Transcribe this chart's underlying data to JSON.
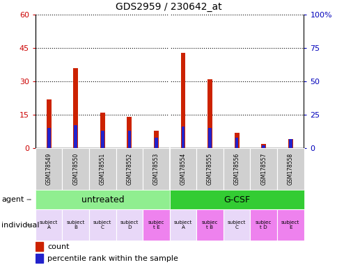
{
  "title": "GDS2959 / 230642_at",
  "samples": [
    "GSM178549",
    "GSM178550",
    "GSM178551",
    "GSM178552",
    "GSM178553",
    "GSM178554",
    "GSM178555",
    "GSM178556",
    "GSM178557",
    "GSM178558"
  ],
  "count": [
    22,
    36,
    16,
    14,
    8,
    43,
    31,
    7,
    2,
    4
  ],
  "percentile": [
    15,
    17,
    13,
    13,
    8,
    16,
    15,
    8,
    2,
    7
  ],
  "ylim_left": [
    0,
    60
  ],
  "ylim_right": [
    0,
    100
  ],
  "yticks_left": [
    0,
    15,
    30,
    45,
    60
  ],
  "yticks_right": [
    0,
    25,
    50,
    75,
    100
  ],
  "agent_labels": [
    "untreated",
    "G-CSF"
  ],
  "agent_color_untreated": "#90ee90",
  "agent_color_gcsf": "#33cc33",
  "individual_labels": [
    "subject\nA",
    "subject\nB",
    "subject\nC",
    "subject\nD",
    "subjec\nt E",
    "subject\nA",
    "subjec\nt B",
    "subject\nC",
    "subjec\nt D",
    "subject\nE"
  ],
  "individual_colors": [
    "#e8d8f8",
    "#e8d8f8",
    "#e8d8f8",
    "#e8d8f8",
    "#ee82ee",
    "#e8d8f8",
    "#ee82ee",
    "#e8d8f8",
    "#ee82ee",
    "#ee82ee"
  ],
  "bar_color_red": "#cc2200",
  "bar_color_blue": "#2222cc",
  "tick_color_left": "#cc0000",
  "tick_color_right": "#0000bb",
  "background_bar": "#d0d0d0",
  "bar_width": 0.18,
  "blue_bar_width": 0.12,
  "legend_count_label": "count",
  "legend_pct_label": "percentile rank within the sample"
}
